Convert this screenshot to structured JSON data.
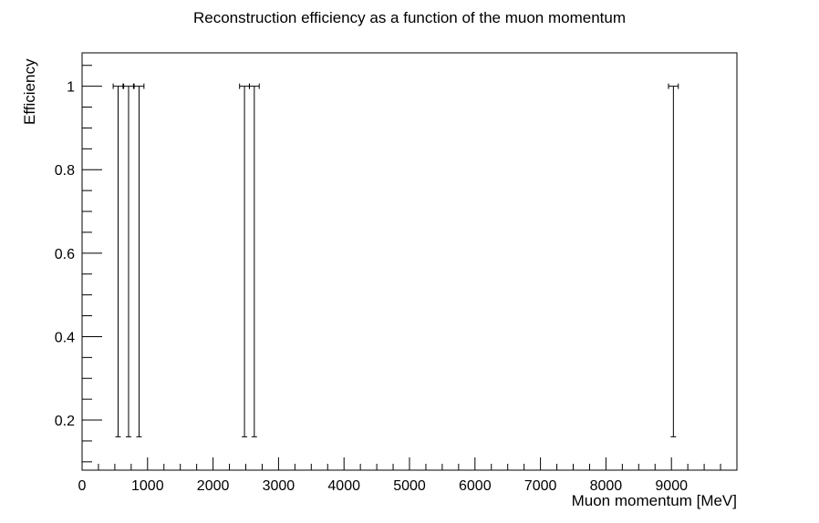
{
  "chart_data": {
    "type": "scatter",
    "title": "Reconstruction efficiency as a function of the muon momentum",
    "xlabel": "Muon momentum [MeV]",
    "ylabel": "Efficiency",
    "xlim": [
      0,
      10000
    ],
    "ylim": [
      0.08,
      1.08
    ],
    "grid": false,
    "x_ticks": [
      0,
      1000,
      2000,
      3000,
      4000,
      5000,
      6000,
      7000,
      8000,
      9000
    ],
    "x_tick_labels": [
      "0",
      "1000",
      "2000",
      "3000",
      "4000",
      "5000",
      "6000",
      "7000",
      "8000",
      "9000"
    ],
    "y_ticks": [
      0.2,
      0.4,
      0.6,
      0.8,
      1.0
    ],
    "y_tick_labels": [
      "0.2",
      "0.4",
      "0.6",
      "0.8",
      "1"
    ],
    "points": [
      {
        "x": 550,
        "y": 1.0,
        "xerr": 75,
        "yerr_low": 0.84,
        "yerr_high": 0
      },
      {
        "x": 710,
        "y": 1.0,
        "xerr": 75,
        "yerr_low": 0.84,
        "yerr_high": 0
      },
      {
        "x": 870,
        "y": 1.0,
        "xerr": 75,
        "yerr_low": 0.84,
        "yerr_high": 0
      },
      {
        "x": 2480,
        "y": 1.0,
        "xerr": 75,
        "yerr_low": 0.84,
        "yerr_high": 0
      },
      {
        "x": 2630,
        "y": 1.0,
        "xerr": 75,
        "yerr_low": 0.84,
        "yerr_high": 0
      },
      {
        "x": 9030,
        "y": 1.0,
        "xerr": 75,
        "yerr_low": 0.84,
        "yerr_high": 0
      }
    ],
    "colors": {
      "axis": "#000000",
      "marker": "#000000",
      "background": "#ffffff"
    }
  }
}
